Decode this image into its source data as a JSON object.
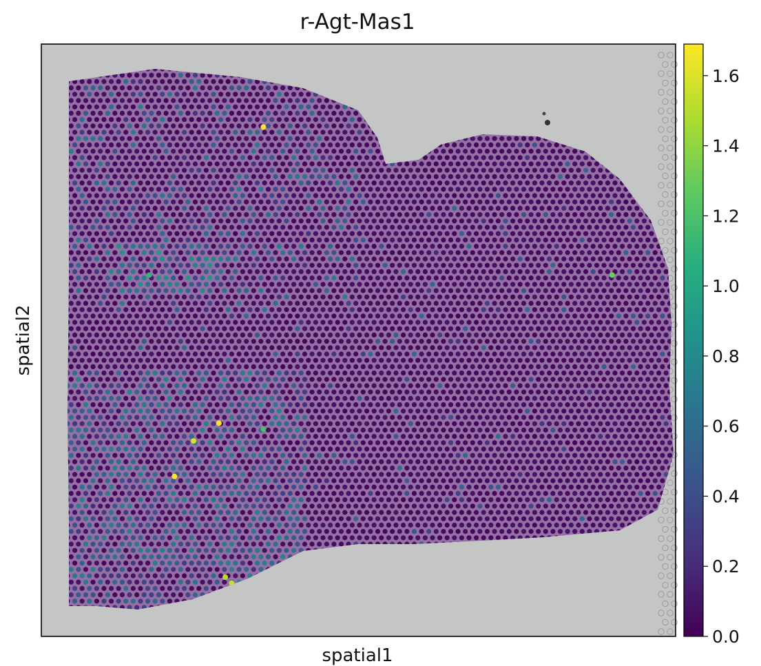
{
  "chart_data": {
    "type": "scatter",
    "title": "r-Agt-Mas1",
    "xlabel": "spatial1",
    "ylabel": "spatial2",
    "grid": false,
    "legend": "none",
    "colormap": "viridis",
    "background": "tissue-image",
    "colorbar": {
      "placement": "right",
      "vmin": 0.0,
      "vmax": 1.69,
      "ticks": [
        0.0,
        0.2,
        0.4,
        0.6,
        0.8,
        1.0,
        1.2,
        1.4,
        1.6
      ],
      "tick_labels": [
        "0.0",
        "0.2",
        "0.4",
        "0.6",
        "0.8",
        "1.0",
        "1.2",
        "1.4",
        "1.6"
      ]
    },
    "series": [
      {
        "values_description": "spot-level expression; mostly near 0.0, moderate 0.3-0.8 in left-lower region, peak values about 1.6-1.7",
        "highlight_points": [
          {
            "x": 0.35,
            "y": 0.86,
            "value": 1.68
          },
          {
            "x": 0.28,
            "y": 0.36,
            "value": 1.66
          },
          {
            "x": 0.24,
            "y": 0.33,
            "value": 1.6
          },
          {
            "x": 0.21,
            "y": 0.27,
            "value": 1.68
          },
          {
            "x": 0.29,
            "y": 0.1,
            "value": 1.5
          },
          {
            "x": 0.3,
            "y": 0.09,
            "value": 1.55
          },
          {
            "x": 0.9,
            "y": 0.61,
            "value": 1.3
          },
          {
            "x": 0.17,
            "y": 0.61,
            "value": 1.1
          },
          {
            "x": 0.35,
            "y": 0.35,
            "value": 1.2
          }
        ]
      }
    ]
  },
  "colors": {
    "tissue_background": "#c3c6c4",
    "tissue_pink": "#8e5fa0",
    "viridis_low": "#440154",
    "viridis_high": "#fde725"
  }
}
